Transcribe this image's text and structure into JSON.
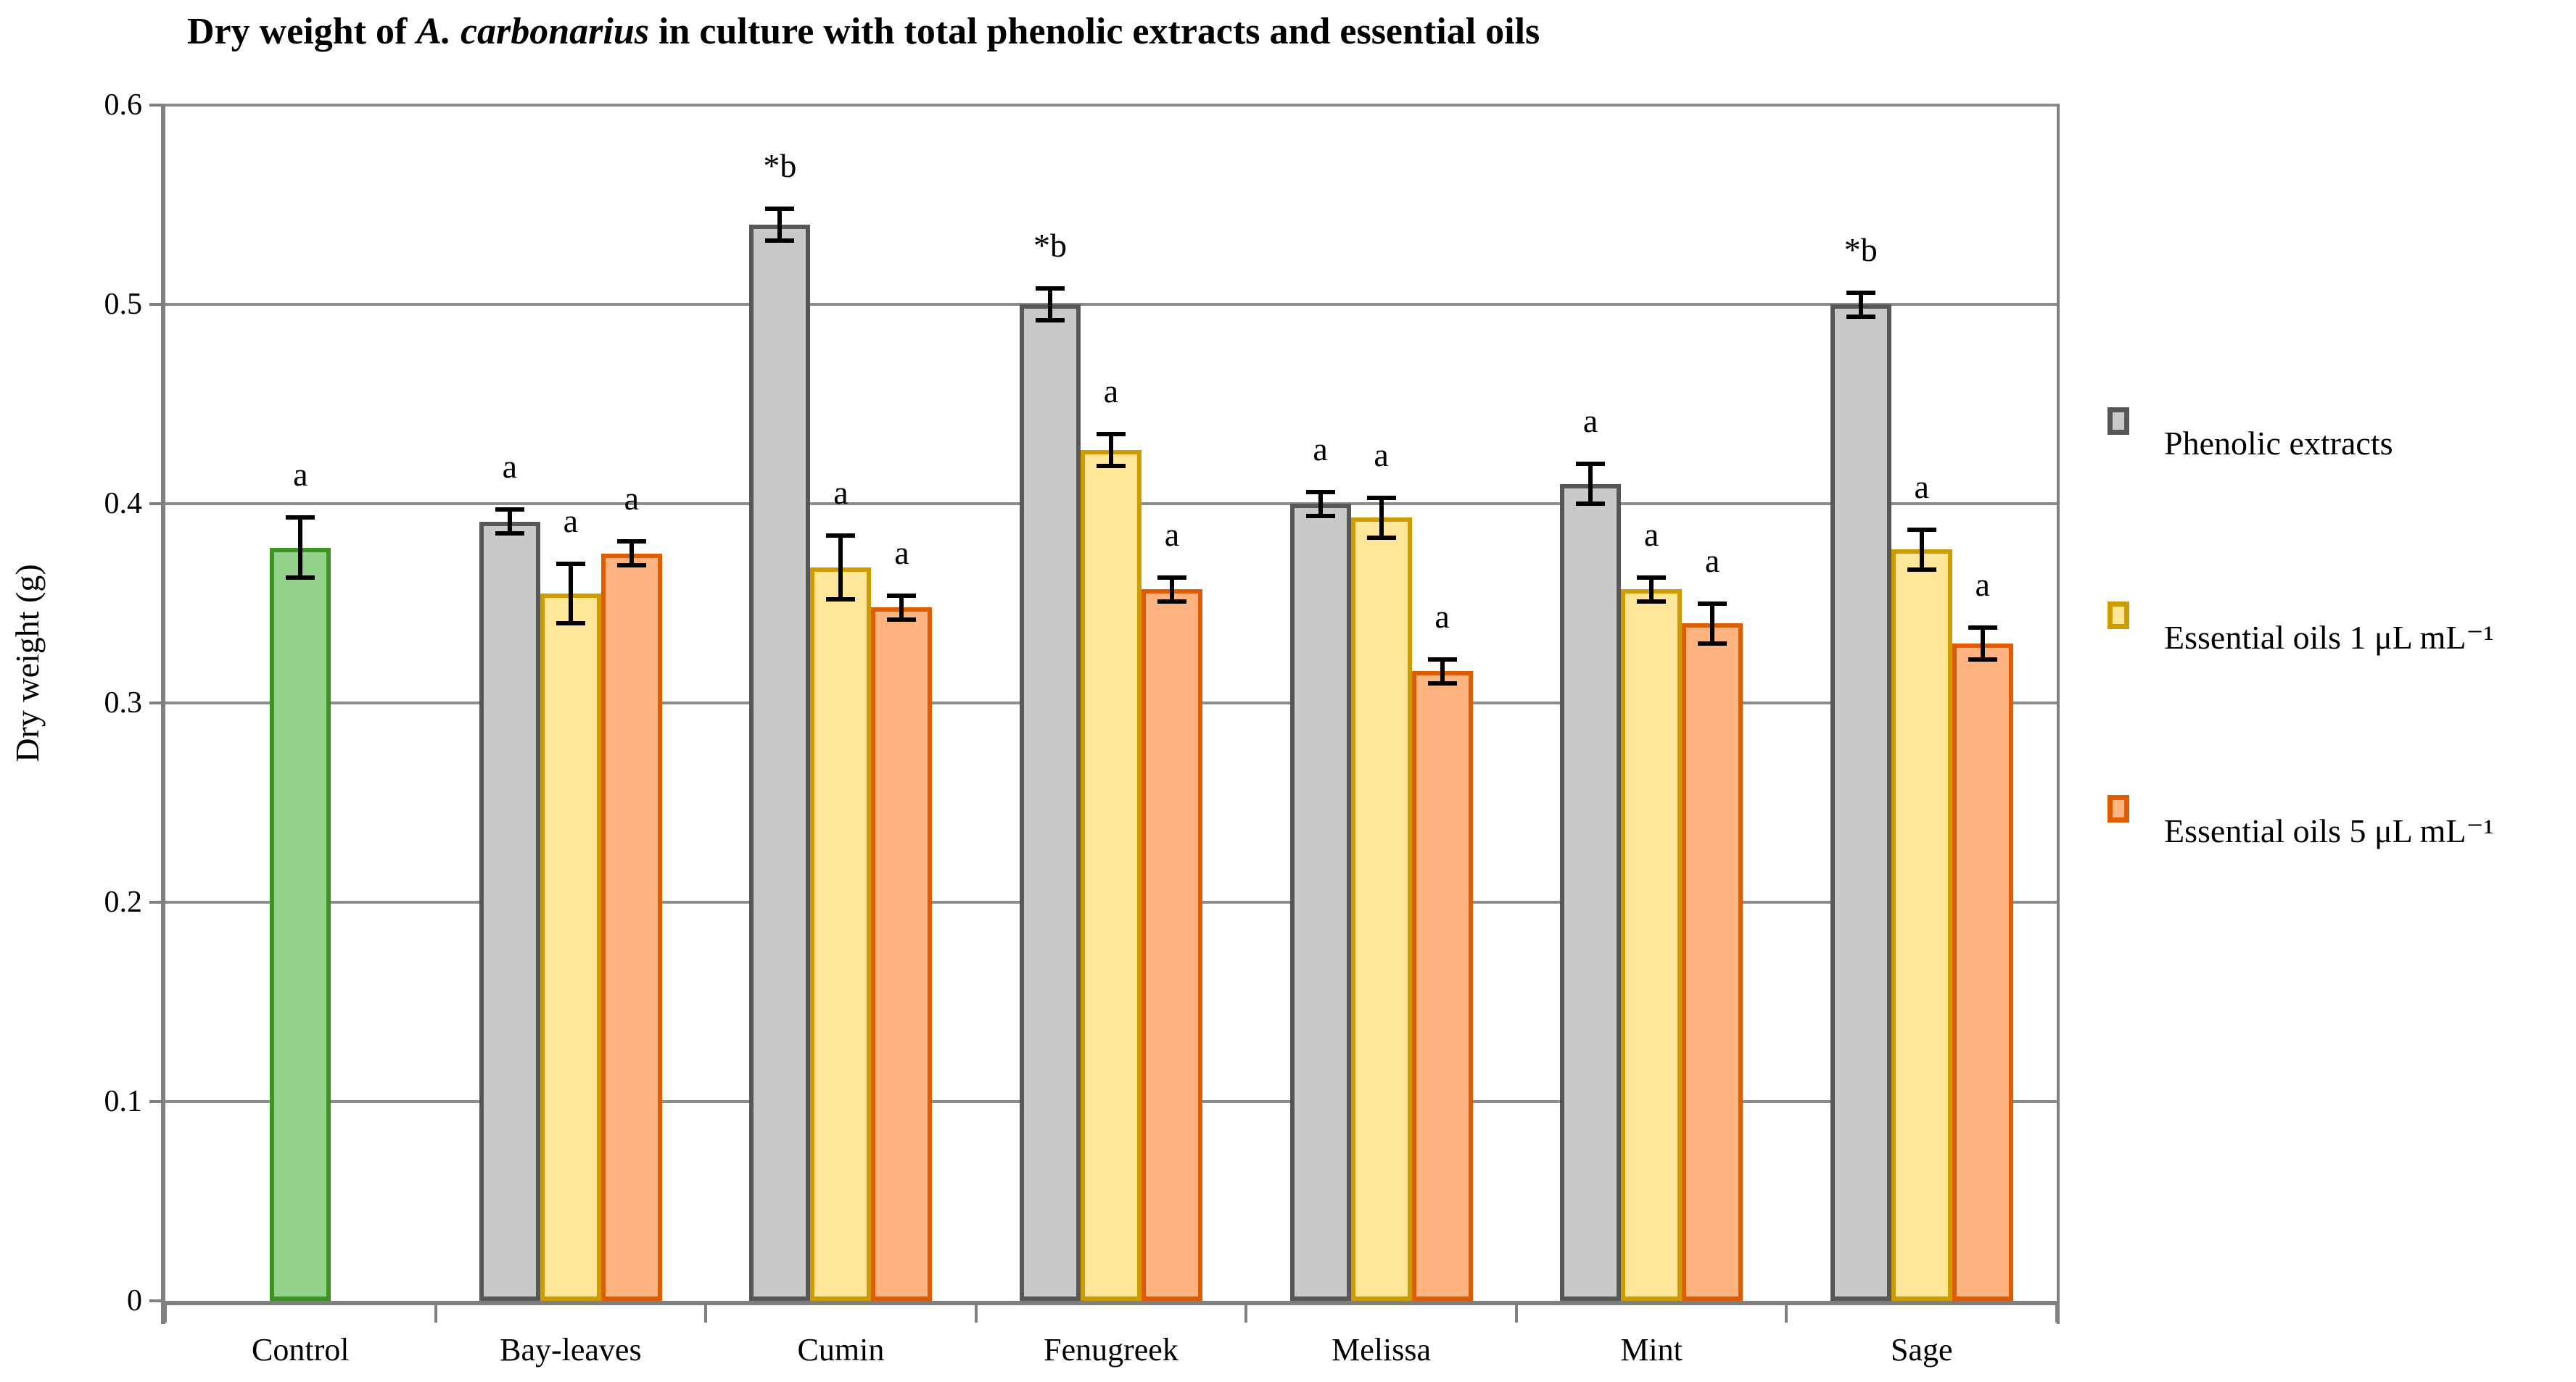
{
  "title_parts": {
    "prefix": "Dry weight of ",
    "species": "A. carbonarius",
    "suffix": " in culture with total phenolic extracts and essential oils"
  },
  "chart_data": {
    "type": "bar",
    "title": "Dry weight of A. carbonarius in culture with total phenolic extracts and essential oils",
    "xlabel": "",
    "ylabel": "Dry weight (g)",
    "ylim": [
      0,
      0.6
    ],
    "yticks": [
      0,
      0.1,
      0.2,
      0.3,
      0.4,
      0.5,
      0.6
    ],
    "ytick_labels": [
      "0",
      "0.1",
      "0.2",
      "0.3",
      "0.4",
      "0.5",
      "0.6"
    ],
    "grid": true,
    "error_bars": true,
    "legend_position": "right",
    "categories": [
      "Control",
      "Bay-leaves",
      "Cumin",
      "Fenugreek",
      "Melissa",
      "Mint",
      "Sage"
    ],
    "groups": [
      {
        "category": "Control",
        "bars": [
          {
            "series": "control",
            "value": 0.378,
            "error": 0.015,
            "label": "a"
          }
        ]
      },
      {
        "category": "Bay-leaves",
        "bars": [
          {
            "series": "phenolic",
            "value": 0.391,
            "error": 0.006,
            "label": "a"
          },
          {
            "series": "oil1",
            "value": 0.355,
            "error": 0.015,
            "label": "a"
          },
          {
            "series": "oil5",
            "value": 0.375,
            "error": 0.006,
            "label": "a"
          }
        ]
      },
      {
        "category": "Cumin",
        "bars": [
          {
            "series": "phenolic",
            "value": 0.54,
            "error": 0.008,
            "label": "*b"
          },
          {
            "series": "oil1",
            "value": 0.368,
            "error": 0.016,
            "label": "a"
          },
          {
            "series": "oil5",
            "value": 0.348,
            "error": 0.006,
            "label": "a"
          }
        ]
      },
      {
        "category": "Fenugreek",
        "bars": [
          {
            "series": "phenolic",
            "value": 0.5,
            "error": 0.008,
            "label": "*b"
          },
          {
            "series": "oil1",
            "value": 0.427,
            "error": 0.008,
            "label": "a"
          },
          {
            "series": "oil5",
            "value": 0.357,
            "error": 0.006,
            "label": "a"
          }
        ]
      },
      {
        "category": "Melissa",
        "bars": [
          {
            "series": "phenolic",
            "value": 0.4,
            "error": 0.006,
            "label": "a"
          },
          {
            "series": "oil1",
            "value": 0.393,
            "error": 0.01,
            "label": "a"
          },
          {
            "series": "oil5",
            "value": 0.316,
            "error": 0.006,
            "label": "a"
          }
        ]
      },
      {
        "category": "Mint",
        "bars": [
          {
            "series": "phenolic",
            "value": 0.41,
            "error": 0.01,
            "label": "a"
          },
          {
            "series": "oil1",
            "value": 0.357,
            "error": 0.006,
            "label": "a"
          },
          {
            "series": "oil5",
            "value": 0.34,
            "error": 0.01,
            "label": "a"
          }
        ]
      },
      {
        "category": "Sage",
        "bars": [
          {
            "series": "phenolic",
            "value": 0.5,
            "error": 0.006,
            "label": "*b"
          },
          {
            "series": "oil1",
            "value": 0.377,
            "error": 0.01,
            "label": "a"
          },
          {
            "series": "oil5",
            "value": 0.33,
            "error": 0.008,
            "label": "a"
          }
        ]
      }
    ],
    "series_styles": {
      "control": {
        "fill": "#94D28B",
        "border": "#3E9423"
      },
      "phenolic": {
        "fill": "#C9C9C9",
        "border": "#575757"
      },
      "oil1": {
        "fill": "#FFE699",
        "border": "#CF9C00"
      },
      "oil5": {
        "fill": "#FFB380",
        "border": "#E05C00"
      }
    },
    "legend": {
      "items": [
        {
          "series": "phenolic",
          "label": "Phenolic extracts"
        },
        {
          "series": "oil1",
          "label": "Essential oils 1 μL mL⁻¹"
        },
        {
          "series": "oil5",
          "label": "Essential oils 5 μL mL⁻¹"
        }
      ]
    },
    "colors": {
      "gridline": "#8C8C8C",
      "axis": "#7F7F7F",
      "error_bar": "#000000",
      "text": "#000000"
    }
  }
}
